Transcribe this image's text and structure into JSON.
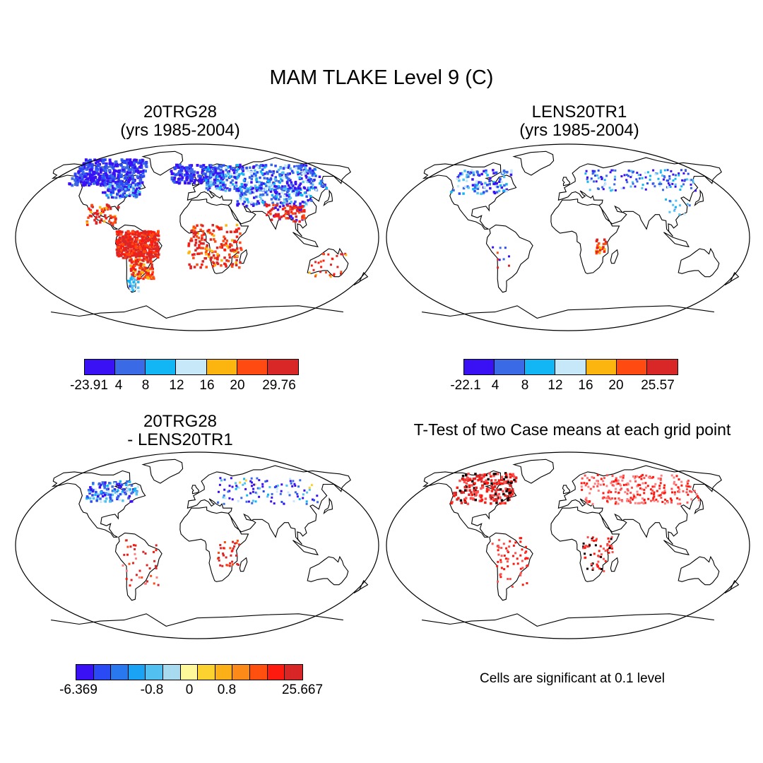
{
  "title": "MAM TLAKE Level 9 (C)",
  "panels": [
    {
      "id": "p1",
      "title_line1": "20TRG28",
      "title_line2": "(yrs 1985-2004)",
      "kind": "case"
    },
    {
      "id": "p2",
      "title_line1": "LENS20TR1",
      "title_line2": "(yrs 1985-2004)",
      "kind": "case2"
    },
    {
      "id": "p3",
      "title_line1": "20TRG28",
      "title_line2": "- LENS20TR1",
      "kind": "diff"
    },
    {
      "id": "p4",
      "title_line1": "T-Test of two Case means at each grid point",
      "kind": "ttest"
    }
  ],
  "colorbars": {
    "top_left": {
      "colors": [
        "#3a10f5",
        "#3a6ae6",
        "#12b6f5",
        "#c6e8f8",
        "#fcb40e",
        "#ff4a12",
        "#d92626"
      ],
      "labels": [
        "-23.91",
        "4",
        "8",
        "12",
        "16",
        "20",
        "29.76"
      ]
    },
    "top_right": {
      "colors": [
        "#3a10f5",
        "#3a6ae6",
        "#12b6f5",
        "#c6e8f8",
        "#fcb40e",
        "#ff4a12",
        "#d92626"
      ],
      "labels": [
        "-22.1",
        "4",
        "8",
        "12",
        "16",
        "20",
        "25.57"
      ]
    },
    "bottom": {
      "colors": [
        "#3a10f5",
        "#2a4af5",
        "#2a78f0",
        "#1aa2f5",
        "#52c0f0",
        "#a8daf0",
        "#fff89a",
        "#fcd230",
        "#fcb018",
        "#fc8a18",
        "#ff5010",
        "#ff1a10",
        "#d82626"
      ],
      "labels": [
        "-6.369",
        "-0.8",
        "0",
        "0.8",
        "25.667"
      ]
    }
  },
  "significance_note": "Cells are significant at 0.1 level"
}
